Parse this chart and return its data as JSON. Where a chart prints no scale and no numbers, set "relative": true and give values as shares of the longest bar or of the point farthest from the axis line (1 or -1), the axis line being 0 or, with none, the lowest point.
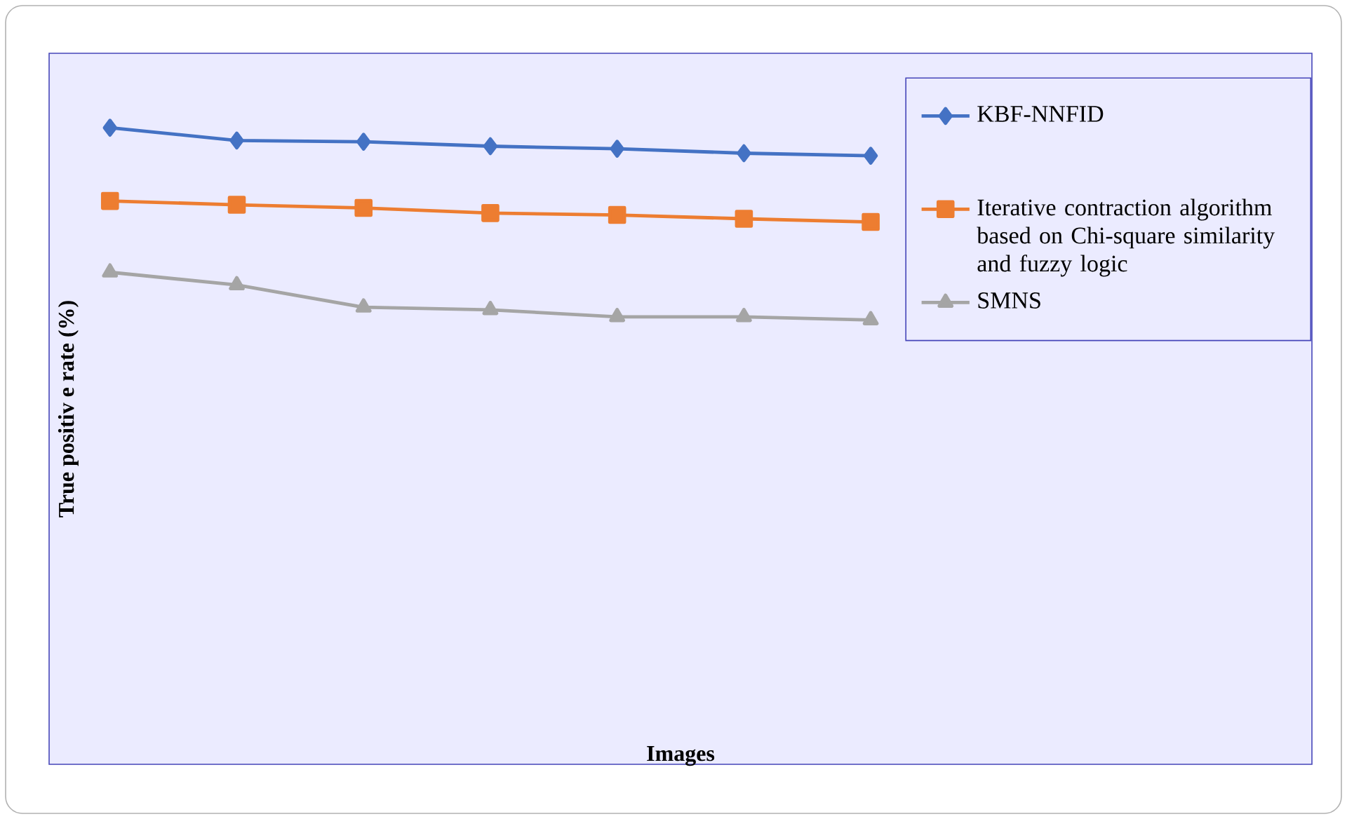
{
  "chart_data": {
    "type": "line",
    "xlabel": "Images",
    "ylabel": "True positiv e rate (%)",
    "relative": true,
    "tick_labels": false,
    "legend": "right",
    "categories": [
      null,
      null,
      null,
      null,
      null,
      null,
      null,
      null,
      null,
      null
    ],
    "series": [
      {
        "name": "KBF-NNFID",
        "color": "#4472c4",
        "marker": "diamond",
        "values": [
          1,
          0.98,
          0.978,
          0.971,
          0.967,
          0.96,
          0.956,
          null,
          null,
          null
        ]
      },
      {
        "name": "Iterative contraction algorithm based on Chi-square similarity and fuzzy logic",
        "color": "#ed7d31",
        "marker": "square",
        "values": [
          0.885,
          0.879,
          0.874,
          0.866,
          0.863,
          0.857,
          0.852,
          null,
          null,
          null
        ]
      },
      {
        "name": "SMNS",
        "color": "#a5a5a5",
        "marker": "triangle",
        "values": [
          0.773,
          0.753,
          0.718,
          0.714,
          0.703,
          0.703,
          0.698,
          null,
          null,
          null
        ]
      }
    ]
  }
}
